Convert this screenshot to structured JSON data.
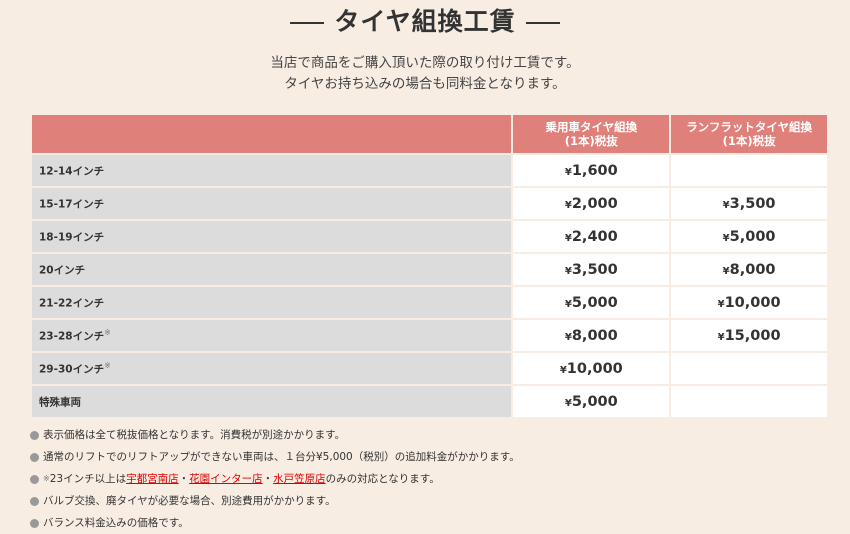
{
  "title": "タイヤ組換工賃",
  "subtitle": [
    "当店で商品をご購入頂いた際の取り付け工賃です。",
    "タイヤお持ち込みの場合も同料金となります。"
  ],
  "table": {
    "headers": [
      "",
      "乗用車タイヤ組換\n(1本)税抜",
      "ランフラットタイヤ組換\n(1本)税抜"
    ],
    "header_lines": [
      [
        "乗用車タイヤ組換",
        "(1本)税抜"
      ],
      [
        "ランフラットタイヤ組換",
        "(1本)税抜"
      ]
    ],
    "rows": [
      {
        "label": "12-14インチ",
        "mark": "",
        "passenger": "1,600",
        "runflat": ""
      },
      {
        "label": "15-17インチ",
        "mark": "",
        "passenger": "2,000",
        "runflat": "3,500"
      },
      {
        "label": "18-19インチ",
        "mark": "",
        "passenger": "2,400",
        "runflat": "5,000"
      },
      {
        "label": "20インチ",
        "mark": "",
        "passenger": "3,500",
        "runflat": "8,000"
      },
      {
        "label": "21-22インチ",
        "mark": "",
        "passenger": "5,000",
        "runflat": "10,000"
      },
      {
        "label": "23-28インチ",
        "mark": "※",
        "passenger": "8,000",
        "runflat": "15,000"
      },
      {
        "label": "29-30インチ",
        "mark": "※",
        "passenger": "10,000",
        "runflat": ""
      },
      {
        "label": "特殊車両",
        "mark": "",
        "passenger": "5,000",
        "runflat": ""
      }
    ],
    "currency": "¥"
  },
  "notes": {
    "n1": "表示価格は全て税抜価格となります。消費税が別途かかります。",
    "n2": "通常のリフトでのリフトアップができない車両は、１台分¥5,000（税別）の追加料金がかかります。",
    "n3_mark": "※",
    "n3_pre": "23インチ以上は",
    "n3_links": [
      "宇都宮南店",
      "花園インター店",
      "水戸笠原店"
    ],
    "n3_sep": "・",
    "n3_post": "のみの対応となります。",
    "n4": "バルブ交換、廃タイヤが必要な場合、別途費用がかかります。",
    "n5": "バランス料金込みの価格です。"
  },
  "colors": {
    "header": "#e0807b",
    "background": "#f8ede3",
    "label_cell": "#dcdcdc",
    "link": "#dd0000"
  }
}
